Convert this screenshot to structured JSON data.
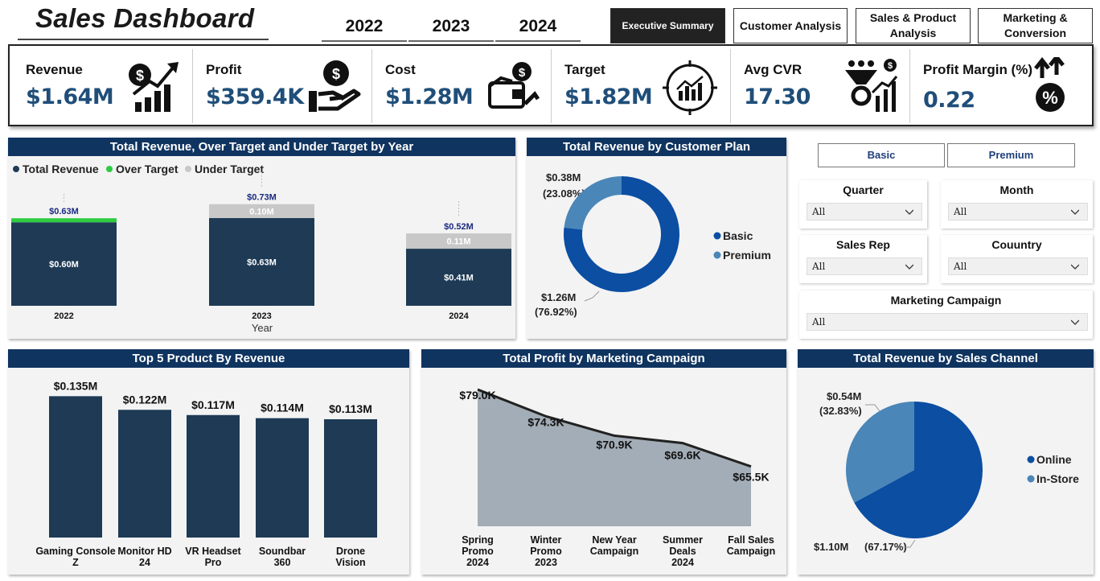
{
  "header": {
    "title": "Sales Dashboard",
    "years": [
      "2022",
      "2023",
      "2024"
    ],
    "tabs": [
      {
        "label": "Executive Summary",
        "active": true
      },
      {
        "label": "Customer Analysis",
        "active": false
      },
      {
        "label": "Sales & Product Analysis",
        "active": false
      },
      {
        "label": "Marketing & Conversion",
        "active": false
      }
    ]
  },
  "kpis": [
    {
      "label": "Revenue",
      "value": "$1.64M",
      "icon": "money-growth-icon"
    },
    {
      "label": "Profit",
      "value": "$359.4K",
      "icon": "hand-money-icon"
    },
    {
      "label": "Cost",
      "value": "$1.28M",
      "icon": "wallet-icon"
    },
    {
      "label": "Target",
      "value": "$1.82M",
      "icon": "target-chart-icon"
    },
    {
      "label": "Avg CVR",
      "value": "17.30",
      "icon": "conversion-funnel-icon"
    },
    {
      "label": "Profit Margin (%)",
      "value": "0.22",
      "icon": "percent-up-icon"
    }
  ],
  "panels": {
    "revenue_target": "Total Revenue, Over Target and Under Target by Year",
    "customer_plan": "Total Revenue by Customer Plan",
    "top_products": "Top 5 Product By Revenue",
    "profit_campaign": "Total Profit by Marketing Campaign",
    "sales_channel": "Total Revenue by Sales Channel"
  },
  "filters": {
    "plan_buttons": [
      "Basic",
      "Premium"
    ],
    "quarter": {
      "label": "Quarter",
      "value": "All"
    },
    "month": {
      "label": "Month",
      "value": "All"
    },
    "sales_rep": {
      "label": "Sales Rep",
      "value": "All"
    },
    "country": {
      "label": "Couuntry",
      "value": "All"
    },
    "campaign": {
      "label": "Marketing Campaign",
      "value": "All"
    }
  },
  "colors": {
    "navy": "#0f3460",
    "bar_dark": "#1e3a55",
    "over_target": "#2ecc40",
    "under_target": "#c8c8c8",
    "basic": "#0b4ea2",
    "premium": "#4a86b8",
    "area": "#a3adb7",
    "kpi_value": "#1f4e79"
  },
  "chart_data": [
    {
      "id": "revenue_target",
      "type": "bar",
      "title": "Total Revenue, Over Target and Under Target by Year",
      "legend": [
        "Total Revenue",
        "Over Target",
        "Under Target"
      ],
      "categories": [
        "2022",
        "2023",
        "2024"
      ],
      "xlabel": "Year",
      "series": [
        {
          "name": "Total Revenue",
          "values": [
            0.6,
            0.63,
            0.41
          ],
          "labels": [
            "$0.60M",
            "$0.63M",
            "$0.41M"
          ]
        },
        {
          "name": "Over Target",
          "values": [
            0.03,
            0,
            0
          ],
          "labels": [
            "",
            "",
            ""
          ]
        },
        {
          "name": "Under Target",
          "values": [
            0,
            0.1,
            0.11
          ],
          "labels": [
            "",
            "0.10M",
            "0.11M"
          ]
        }
      ],
      "totals": [
        "$0.63M",
        "$0.73M",
        "$0.52M"
      ],
      "totals_values": [
        0.63,
        0.73,
        0.52
      ],
      "ylim": [
        0,
        0.8
      ]
    },
    {
      "id": "customer_plan",
      "type": "pie",
      "title": "Total Revenue by Customer Plan",
      "labels": [
        "Basic",
        "Premium"
      ],
      "values": [
        1.26,
        0.38
      ],
      "percents": [
        76.92,
        23.08
      ],
      "value_labels": [
        "$1.26M",
        "$0.38M"
      ],
      "percent_labels": [
        "(76.92%)",
        "(23.08%)"
      ],
      "donut": true
    },
    {
      "id": "top_products",
      "type": "bar",
      "title": "Top 5 Product By Revenue",
      "categories": [
        "Gaming Console Z",
        "Monitor HD 24",
        "VR Headset Pro",
        "Soundbar 360",
        "Drone Vision"
      ],
      "values": [
        0.135,
        0.122,
        0.117,
        0.114,
        0.113
      ],
      "value_labels": [
        "$0.135M",
        "$0.122M",
        "$0.117M",
        "$0.114M",
        "$0.113M"
      ],
      "ylim": [
        0,
        0.14
      ]
    },
    {
      "id": "profit_campaign",
      "type": "area",
      "title": "Total Profit by Marketing Campaign",
      "categories": [
        "Spring Promo 2024",
        "Winter Promo 2023",
        "New Year Campaign",
        "Summer Deals 2024",
        "Fall Sales Campaign"
      ],
      "values": [
        79.0,
        74.3,
        70.9,
        69.6,
        65.5
      ],
      "value_labels": [
        "$79.0K",
        "$74.3K",
        "$70.9K",
        "$69.6K",
        "$65.5K"
      ],
      "ylim": [
        55,
        80
      ]
    },
    {
      "id": "sales_channel",
      "type": "pie",
      "title": "Total Revenue by Sales Channel",
      "labels": [
        "Online",
        "In-Store"
      ],
      "values": [
        1.1,
        0.54
      ],
      "percents": [
        67.17,
        32.83
      ],
      "value_labels": [
        "$1.10M",
        "$0.54M"
      ],
      "percent_labels": [
        "(67.17%)",
        "(32.83%)"
      ]
    }
  ]
}
